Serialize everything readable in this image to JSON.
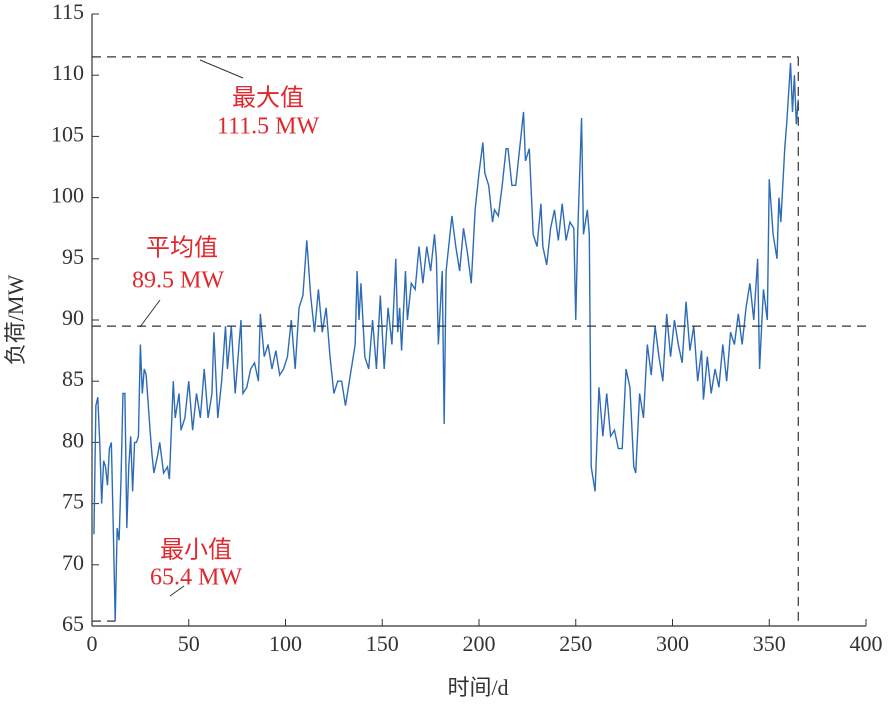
{
  "chart_data": {
    "type": "line",
    "x_label": "时间/d",
    "y_label": "负荷/MW",
    "xlim": [
      0,
      400
    ],
    "xticks": [
      0,
      50,
      100,
      150,
      200,
      250,
      300,
      350,
      400
    ],
    "ylim": [
      65,
      115
    ],
    "yticks": [
      65,
      70,
      75,
      80,
      85,
      90,
      95,
      100,
      105,
      110,
      115
    ],
    "color": "#2e6bb5",
    "x": [
      1,
      2,
      3,
      4,
      5,
      6,
      7,
      8,
      9,
      10,
      11,
      12,
      13,
      14,
      15,
      16,
      17,
      18,
      19,
      20,
      21,
      22,
      23,
      24,
      25,
      26,
      27,
      28,
      30,
      31,
      32,
      34,
      35,
      37,
      39,
      40,
      42,
      43,
      45,
      46,
      48,
      50,
      52,
      54,
      56,
      58,
      60,
      62,
      63,
      65,
      67,
      69,
      70,
      72,
      74,
      75,
      77,
      78,
      80,
      82,
      84,
      86,
      87,
      89,
      91,
      93,
      95,
      97,
      99,
      101,
      103,
      105,
      107,
      109,
      111,
      113,
      115,
      117,
      119,
      121,
      123,
      125,
      127,
      129,
      131,
      133,
      135,
      136,
      137,
      138,
      139,
      141,
      143,
      145,
      147,
      149,
      151,
      153,
      155,
      157,
      158,
      159,
      160,
      162,
      163,
      165,
      167,
      169,
      171,
      173,
      175,
      177,
      178,
      179,
      181,
      182,
      183,
      185,
      186,
      188,
      190,
      192,
      194,
      196,
      198,
      200,
      202,
      203,
      205,
      207,
      208,
      210,
      212,
      214,
      215,
      217,
      219,
      221,
      223,
      224,
      226,
      228,
      230,
      232,
      233,
      235,
      237,
      239,
      241,
      243,
      245,
      247,
      249,
      250,
      251,
      253,
      254,
      256,
      257,
      258,
      260,
      262,
      264,
      266,
      268,
      270,
      272,
      274,
      276,
      278,
      280,
      281,
      283,
      285,
      287,
      289,
      291,
      293,
      295,
      297,
      299,
      301,
      303,
      305,
      307,
      309,
      311,
      313,
      315,
      316,
      318,
      320,
      322,
      324,
      326,
      328,
      330,
      332,
      334,
      336,
      338,
      340,
      342,
      344,
      345,
      347,
      349,
      350,
      352,
      354,
      355,
      356,
      358,
      359,
      361,
      362,
      363,
      364,
      365
    ],
    "values": [
      72.5,
      83,
      83.7,
      80,
      75,
      78.5,
      78,
      76.5,
      79.5,
      80,
      73,
      65.4,
      73,
      72,
      77,
      84,
      84,
      73,
      78,
      80.5,
      76,
      80,
      80,
      80.5,
      88,
      84,
      86,
      85.5,
      81,
      79,
      77.5,
      79,
      80,
      77.5,
      78,
      77,
      85,
      82,
      84,
      81,
      82,
      85,
      81,
      84,
      82,
      86,
      82,
      84,
      89,
      82,
      85,
      89.5,
      86,
      89.5,
      84,
      86,
      90,
      84,
      84.5,
      86,
      86.5,
      85,
      90.5,
      87,
      88,
      86,
      87.5,
      85.5,
      86,
      87,
      90,
      86,
      91,
      92,
      96.5,
      92,
      89,
      92.5,
      89,
      91,
      87,
      84,
      85,
      85,
      83,
      85,
      87,
      88,
      94,
      90,
      93,
      87,
      86,
      90,
      86,
      92,
      86,
      91,
      88,
      95,
      89,
      91,
      87.5,
      94,
      90,
      93,
      92.5,
      96,
      93,
      96,
      94,
      97,
      95,
      88,
      94,
      81.5,
      94,
      97,
      98.5,
      96,
      94,
      97.5,
      95.5,
      93,
      99,
      102,
      104.5,
      102,
      101,
      98,
      99,
      98.5,
      101,
      104,
      104,
      101,
      101,
      104,
      107,
      103,
      104,
      97,
      96,
      99.5,
      96,
      94.5,
      97.5,
      99,
      96.5,
      99.5,
      96.5,
      98,
      97.5,
      90,
      97,
      106.5,
      97,
      99,
      97,
      78,
      76,
      84.5,
      80.5,
      84,
      80.5,
      81,
      79.5,
      79.5,
      86,
      84.5,
      78,
      77.5,
      84,
      82,
      88,
      85.5,
      89.5,
      87,
      85,
      90.5,
      87,
      90,
      88,
      86.5,
      91.5,
      87.5,
      89.5,
      85,
      87.5,
      83.5,
      87,
      84,
      86,
      84.5,
      88,
      85,
      89,
      88,
      90.5,
      88,
      91,
      93,
      90,
      95,
      86,
      92.5,
      90,
      101.5,
      97,
      95,
      100,
      98,
      104,
      106,
      111,
      107,
      110,
      106,
      108
    ],
    "annotations": [
      {
        "label": "最大值",
        "value": 111.5,
        "value_label": "111.5 MW"
      },
      {
        "label": "平均值",
        "value": 89.5,
        "value_label": "89.5 MW"
      },
      {
        "label": "最小值",
        "value": 65.4,
        "value_label": "65.4 MW"
      }
    ]
  }
}
